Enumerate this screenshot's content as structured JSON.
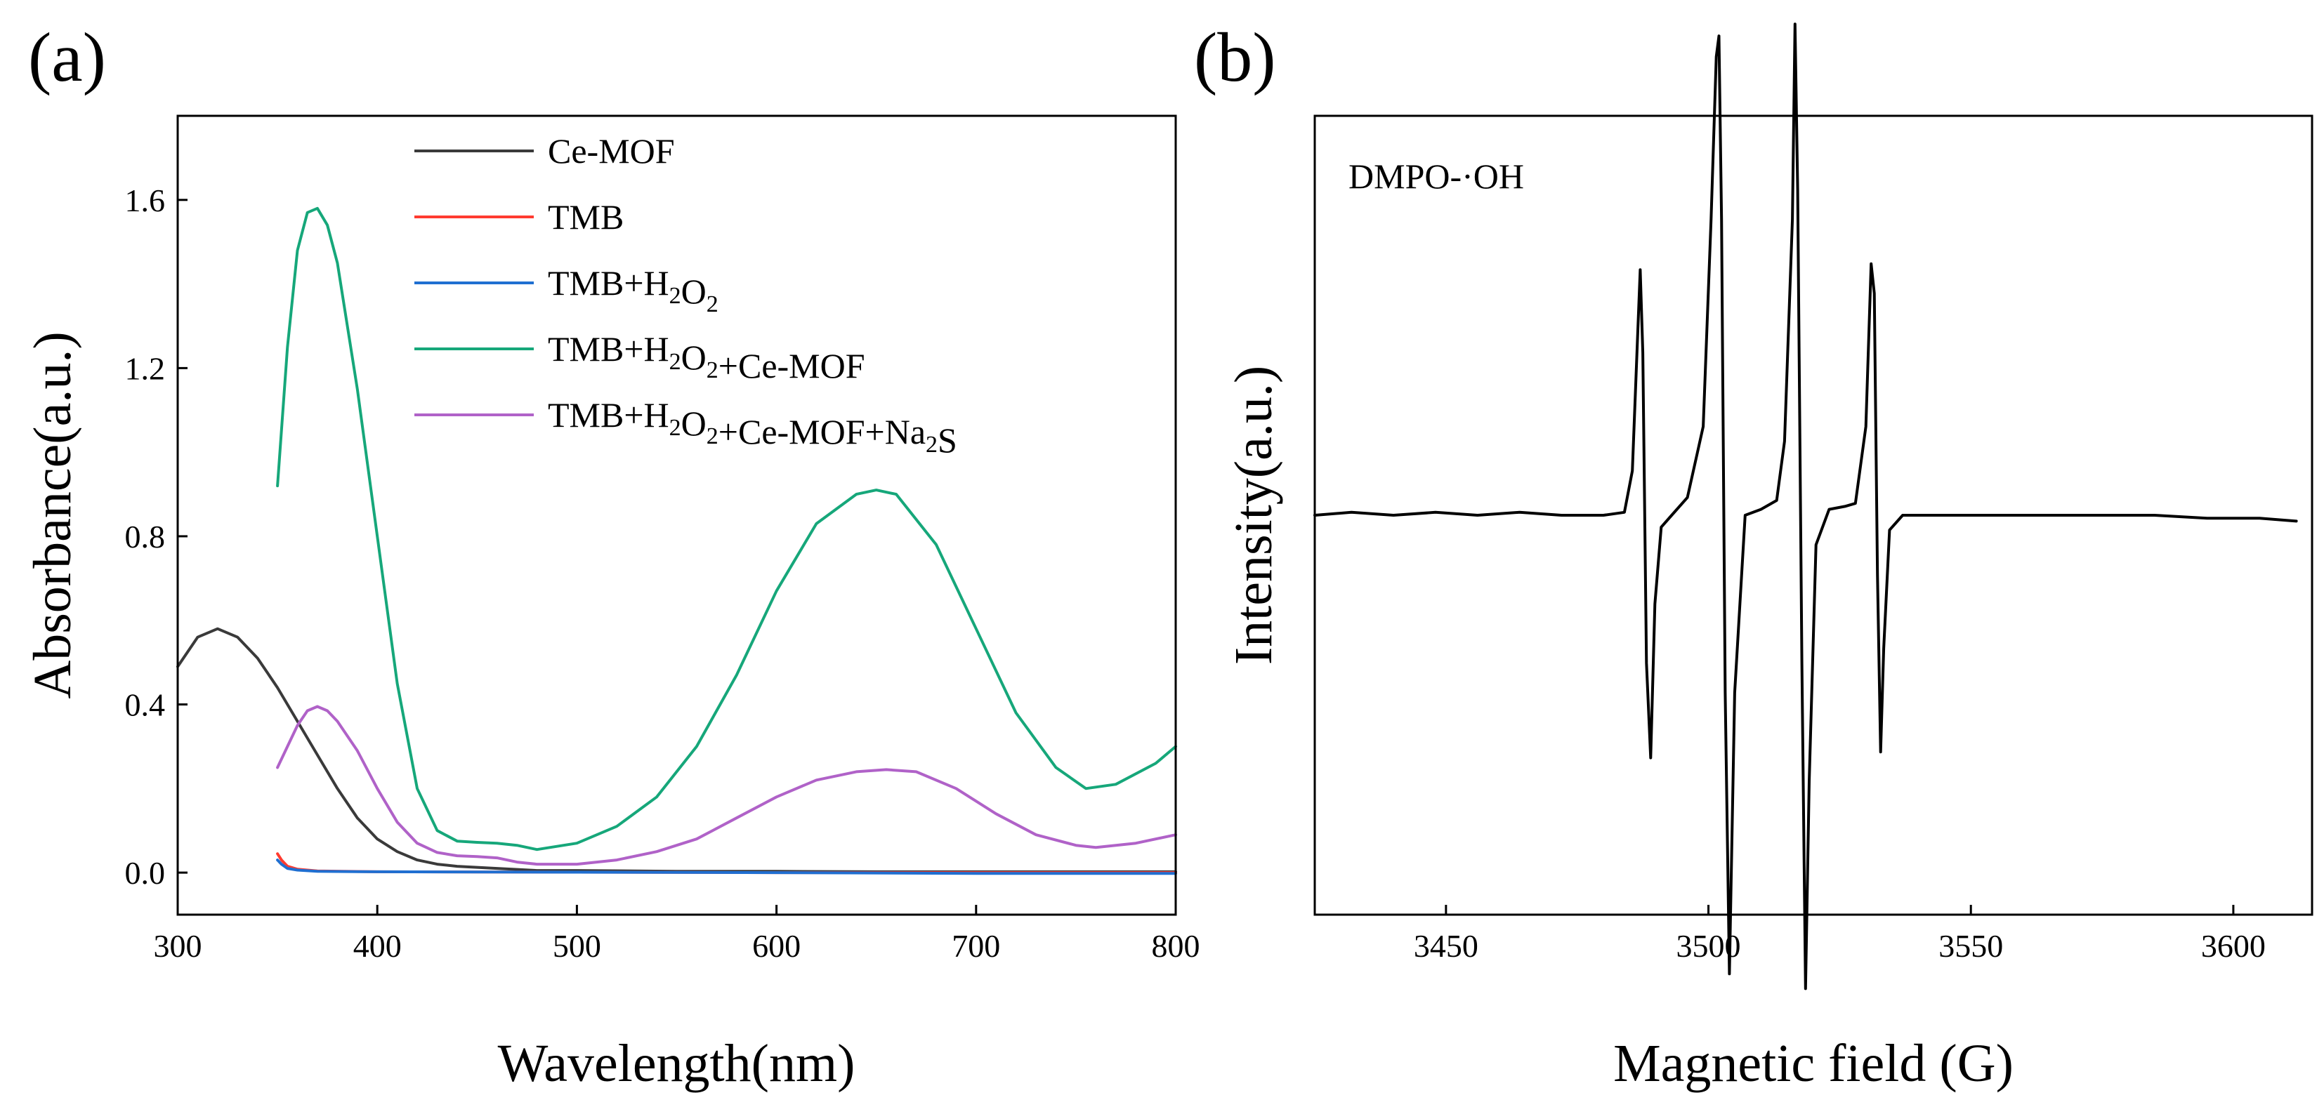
{
  "chart_data": [
    {
      "panel_label": "(a)",
      "type": "line",
      "xlabel": "Wavelength(nm)",
      "ylabel": "Absorbance(a.u.)",
      "xlim": [
        300,
        800
      ],
      "ylim": [
        -0.1,
        1.8
      ],
      "xticks": [
        300,
        400,
        500,
        600,
        700,
        800
      ],
      "xtick_labels": [
        "300",
        "400",
        "500",
        "600",
        "700",
        "800"
      ],
      "yticks": [
        0.0,
        0.4,
        0.8,
        1.2,
        1.6
      ],
      "ytick_labels": [
        "0.0",
        "0.4",
        "0.8",
        "1.2",
        "1.6"
      ],
      "grid": false,
      "legend_position": "top-right",
      "series": [
        {
          "name": "Ce-MOF",
          "legend_parts": [
            {
              "t": "Ce-MOF"
            }
          ],
          "color": "#3a3a3a",
          "x": [
            300,
            310,
            320,
            330,
            340,
            350,
            360,
            370,
            380,
            390,
            400,
            410,
            420,
            430,
            440,
            460,
            480,
            500,
            550,
            600,
            650,
            700,
            750,
            800
          ],
          "y": [
            0.49,
            0.56,
            0.58,
            0.56,
            0.51,
            0.44,
            0.36,
            0.28,
            0.2,
            0.13,
            0.08,
            0.05,
            0.03,
            0.02,
            0.015,
            0.01,
            0.005,
            0.005,
            0.003,
            0.003,
            0.002,
            0.002,
            0.002,
            0.002
          ]
        },
        {
          "name": "TMB",
          "legend_parts": [
            {
              "t": "TMB"
            }
          ],
          "color": "#ff3b30",
          "x": [
            350,
            352,
            355,
            360,
            370,
            400,
            500,
            600,
            700,
            800
          ],
          "y": [
            0.045,
            0.03,
            0.015,
            0.008,
            0.004,
            0.002,
            0.001,
            0.0,
            0.0,
            0.0
          ]
        },
        {
          "name": "TMB+H2O2",
          "legend_parts": [
            {
              "t": "TMB+H"
            },
            {
              "t": "2",
              "sub": true
            },
            {
              "t": "O"
            },
            {
              "t": "2",
              "sub": true
            }
          ],
          "color": "#1f6fd1",
          "x": [
            350,
            352,
            355,
            360,
            370,
            400,
            500,
            600,
            700,
            800
          ],
          "y": [
            0.03,
            0.02,
            0.01,
            0.006,
            0.003,
            0.002,
            0.001,
            0.0,
            -0.002,
            -0.002
          ]
        },
        {
          "name": "TMB+H2O2+Ce-MOF",
          "legend_parts": [
            {
              "t": "TMB+H"
            },
            {
              "t": "2",
              "sub": true
            },
            {
              "t": "O"
            },
            {
              "t": "2",
              "sub": true
            },
            {
              "t": "+Ce-MOF"
            }
          ],
          "color": "#16a77a",
          "x": [
            350,
            355,
            360,
            365,
            370,
            375,
            380,
            390,
            400,
            410,
            420,
            430,
            440,
            450,
            460,
            470,
            480,
            500,
            520,
            540,
            560,
            580,
            600,
            620,
            640,
            650,
            660,
            680,
            700,
            720,
            740,
            755,
            770,
            790,
            800
          ],
          "y": [
            0.92,
            1.25,
            1.48,
            1.57,
            1.58,
            1.54,
            1.45,
            1.15,
            0.8,
            0.45,
            0.2,
            0.1,
            0.075,
            0.072,
            0.07,
            0.065,
            0.055,
            0.07,
            0.11,
            0.18,
            0.3,
            0.47,
            0.67,
            0.83,
            0.9,
            0.91,
            0.9,
            0.78,
            0.58,
            0.38,
            0.25,
            0.2,
            0.21,
            0.26,
            0.3
          ]
        },
        {
          "name": "TMB+H2O2+Ce-MOF+Na2S",
          "legend_parts": [
            {
              "t": "TMB+H"
            },
            {
              "t": "2",
              "sub": true
            },
            {
              "t": "O"
            },
            {
              "t": "2",
              "sub": true
            },
            {
              "t": "+Ce-MOF+Na"
            },
            {
              "t": "2",
              "sub": true
            },
            {
              "t": "S"
            }
          ],
          "color": "#b062c8",
          "x": [
            350,
            355,
            360,
            365,
            370,
            375,
            380,
            390,
            400,
            410,
            420,
            430,
            440,
            450,
            460,
            470,
            480,
            500,
            520,
            540,
            560,
            580,
            600,
            620,
            640,
            655,
            670,
            690,
            710,
            730,
            750,
            760,
            780,
            800
          ],
          "y": [
            0.25,
            0.3,
            0.35,
            0.385,
            0.395,
            0.385,
            0.36,
            0.29,
            0.2,
            0.12,
            0.07,
            0.048,
            0.04,
            0.038,
            0.035,
            0.025,
            0.02,
            0.02,
            0.03,
            0.05,
            0.08,
            0.13,
            0.18,
            0.22,
            0.24,
            0.245,
            0.24,
            0.2,
            0.14,
            0.09,
            0.065,
            0.06,
            0.07,
            0.09
          ]
        }
      ]
    },
    {
      "panel_label": "(b)",
      "type": "line",
      "xlabel": "Magnetic field (G)",
      "ylabel": "Intensity(a.u.)",
      "xlim": [
        3425,
        3615
      ],
      "ylim": [
        -1.35,
        1.35
      ],
      "xticks": [
        3450,
        3500,
        3550,
        3600
      ],
      "xtick_labels": [
        "3450",
        "3500",
        "3550",
        "3600"
      ],
      "yticks": [],
      "ytick_labels": [],
      "grid": false,
      "annotation": "DMPO-·OH",
      "series": [
        {
          "color": "#000000",
          "x": [
            3425,
            3432,
            3440,
            3448,
            3456,
            3464,
            3472,
            3480,
            3484,
            3485.5,
            3486.5,
            3487,
            3487.5,
            3488.2,
            3489,
            3489.8,
            3491,
            3493,
            3496,
            3499,
            3500.5,
            3501.5,
            3502,
            3502.5,
            3503.2,
            3504,
            3505,
            3507,
            3510,
            3513,
            3514.5,
            3516,
            3516.5,
            3517,
            3517.8,
            3518.5,
            3519.2,
            3520.5,
            3523,
            3526,
            3528,
            3530,
            3531,
            3531.6,
            3532.2,
            3532.8,
            3533.4,
            3534.5,
            3537,
            3545,
            3555,
            3565,
            3575,
            3585,
            3595,
            3605,
            3612
          ],
          "y": [
            0.0,
            0.01,
            0.0,
            0.01,
            0.0,
            0.01,
            0.0,
            0.0,
            0.01,
            0.15,
            0.6,
            0.83,
            0.55,
            -0.5,
            -0.82,
            -0.3,
            -0.04,
            0.0,
            0.06,
            0.3,
            1.0,
            1.55,
            1.62,
            1.0,
            -0.6,
            -1.55,
            -0.6,
            0.0,
            0.02,
            0.05,
            0.25,
            1.0,
            1.66,
            1.1,
            -0.5,
            -1.6,
            -0.9,
            -0.1,
            0.02,
            0.03,
            0.04,
            0.3,
            0.85,
            0.75,
            -0.2,
            -0.8,
            -0.45,
            -0.05,
            0.0,
            0.0,
            0.0,
            0.0,
            0.0,
            0.0,
            -0.01,
            -0.01,
            -0.02
          ]
        }
      ]
    }
  ]
}
